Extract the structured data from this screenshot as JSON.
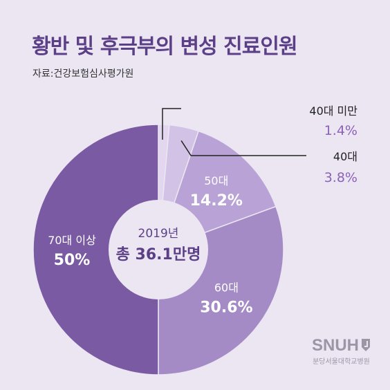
{
  "header": {
    "title": "황반 및 후극부의 변성 진료인원",
    "source": "자료:건강보험심사평가원"
  },
  "center": {
    "year": "2019년",
    "total_label": "총 36.1만명"
  },
  "logo": {
    "text": "SNUH",
    "subtitle": "분당서울대학교병원"
  },
  "colors": {
    "background": "#ece6f3",
    "title": "#5b3f87",
    "accent_text": "#8a62b8",
    "center_circle": "#ece6f3",
    "center_text": "#5b3f87"
  },
  "chart_data": {
    "type": "pie",
    "donut": true,
    "slices": [
      {
        "label": "40대 미만",
        "value_label": "1.4%",
        "value": 1.4,
        "color": "#e2d7ee"
      },
      {
        "label": "40대",
        "value_label": "3.8%",
        "value": 3.8,
        "color": "#d2c3e6"
      },
      {
        "label": "50대",
        "value_label": "14.2%",
        "value": 14.2,
        "color": "#b9a2d5"
      },
      {
        "label": "60대",
        "value_label": "30.6%",
        "value": 30.6,
        "color": "#a48bc6"
      },
      {
        "label": "70대 이상",
        "value_label": "50%",
        "value": 50,
        "color": "#7a5aa2"
      }
    ]
  }
}
